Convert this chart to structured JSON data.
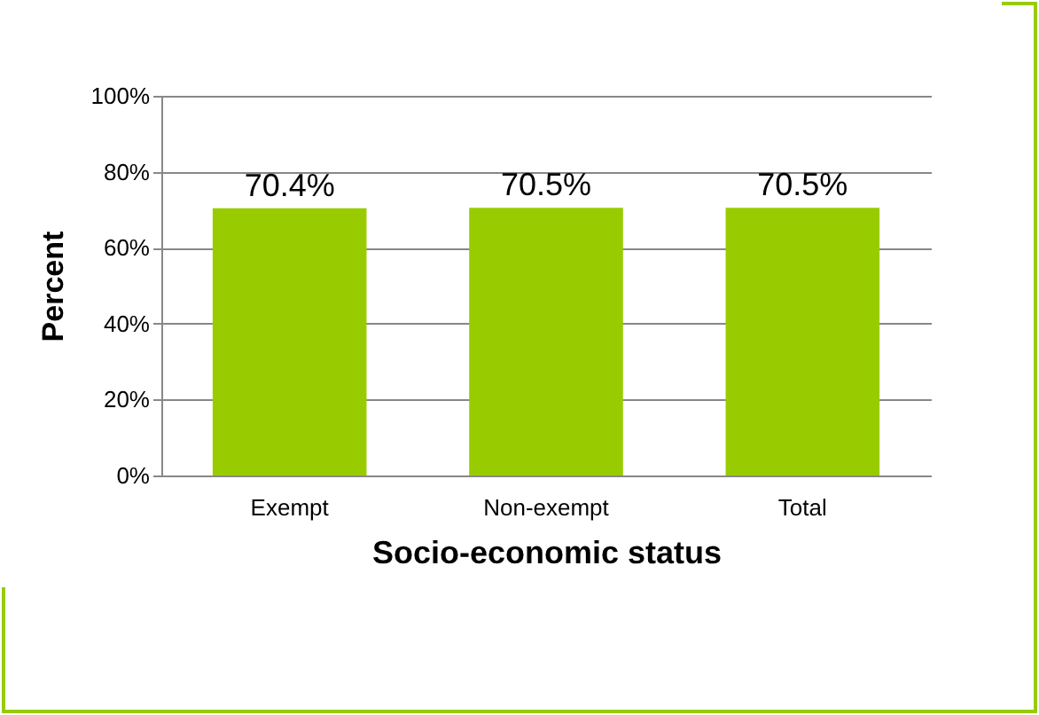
{
  "chart_data": {
    "type": "bar",
    "xlabel": "Socio-economic status",
    "ylabel": "Percent",
    "categories": [
      "Exempt",
      "Non-exempt",
      "Total"
    ],
    "values": [
      70.4,
      70.5,
      70.5
    ],
    "value_labels": [
      "70.4%",
      "70.5%",
      "70.5%"
    ],
    "color": "#99cc00",
    "ylim": [
      0,
      100
    ],
    "yticks": [
      {
        "value": 0,
        "label": "0%"
      },
      {
        "value": 20,
        "label": "20%"
      },
      {
        "value": 40,
        "label": "40%"
      },
      {
        "value": 60,
        "label": "60%"
      },
      {
        "value": 80,
        "label": "80%"
      },
      {
        "value": 100,
        "label": "100%"
      }
    ],
    "grid": "y"
  }
}
